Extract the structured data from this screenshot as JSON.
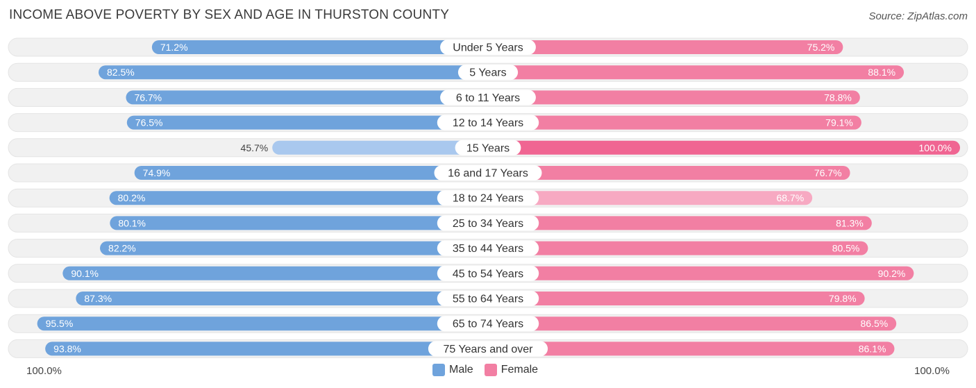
{
  "title": "INCOME ABOVE POVERTY BY SEX AND AGE IN THURSTON COUNTY",
  "source": "Source: ZipAtlas.com",
  "colors": {
    "male": "#6fa3dc",
    "male_light": "#a9c8ee",
    "female": "#f27fa3",
    "female_light": "#f7a9c2",
    "female_strong": "#f06592",
    "track": "#f1f1f1"
  },
  "chart_data": {
    "type": "bar",
    "orientation": "horizontal-diverging",
    "title": "INCOME ABOVE POVERTY BY SEX AND AGE IN THURSTON COUNTY",
    "categories": [
      "Under 5 Years",
      "5 Years",
      "6 to 11 Years",
      "12 to 14 Years",
      "15 Years",
      "16 and 17 Years",
      "18 to 24 Years",
      "25 to 34 Years",
      "35 to 44 Years",
      "45 to 54 Years",
      "55 to 64 Years",
      "65 to 74 Years",
      "75 Years and over"
    ],
    "series": [
      {
        "name": "Male",
        "values": [
          71.2,
          82.5,
          76.7,
          76.5,
          45.7,
          74.9,
          80.2,
          80.1,
          82.2,
          90.1,
          87.3,
          95.5,
          93.8
        ]
      },
      {
        "name": "Female",
        "values": [
          75.2,
          88.1,
          78.8,
          79.1,
          100.0,
          76.7,
          68.7,
          81.3,
          80.5,
          90.2,
          79.8,
          86.5,
          86.1
        ]
      }
    ],
    "labels": {
      "male": [
        "71.2%",
        "82.5%",
        "76.7%",
        "76.5%",
        "45.7%",
        "74.9%",
        "80.2%",
        "80.1%",
        "82.2%",
        "90.1%",
        "87.3%",
        "95.5%",
        "93.8%"
      ],
      "female": [
        "75.2%",
        "88.1%",
        "78.8%",
        "79.1%",
        "100.0%",
        "76.7%",
        "68.7%",
        "81.3%",
        "80.5%",
        "90.2%",
        "79.8%",
        "86.5%",
        "86.1%"
      ]
    },
    "xlim": [
      0,
      100
    ],
    "axis_left_label": "100.0%",
    "axis_right_label": "100.0%",
    "legend": [
      {
        "name": "Male"
      },
      {
        "name": "Female"
      }
    ],
    "legend_position": "bottom-center"
  }
}
